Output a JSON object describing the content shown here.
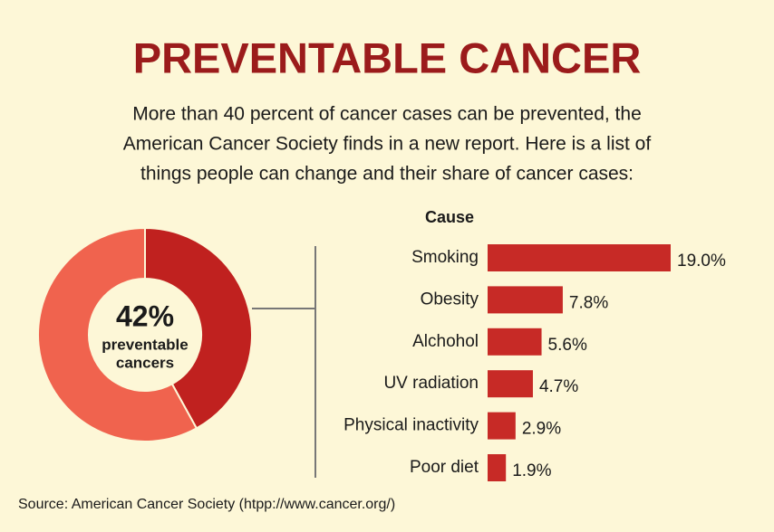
{
  "title": "PREVENTABLE CANCER",
  "subtitle": [
    "More than 40 percent of cancer cases can be prevented, the",
    "American Cancer Society finds in a new report. Here is a list of",
    "things people can change and their share of cancer cases:"
  ],
  "source": "Source: American Cancer Society (htpp://www.cancer.org/)",
  "chart_data": [
    {
      "type": "donut",
      "values": [
        42,
        58
      ],
      "value_labels": [
        "42%",
        null
      ],
      "colors": [
        "#c0211f",
        "#f0634e"
      ],
      "center_text": [
        "preventable",
        "cancers"
      ]
    },
    {
      "type": "hbar",
      "axis_label": "Cause",
      "categories": [
        "Smoking",
        "Obesity",
        "Alchohol",
        "UV radiation",
        "Physical inactivity",
        "Poor diet"
      ],
      "values": [
        19.0,
        7.8,
        5.6,
        4.7,
        2.9,
        1.9
      ],
      "value_labels": [
        "19.0%",
        "7.8%",
        "5.6%",
        "4.7%",
        "2.9%",
        "1.9%"
      ],
      "color": "#c72a26"
    }
  ]
}
